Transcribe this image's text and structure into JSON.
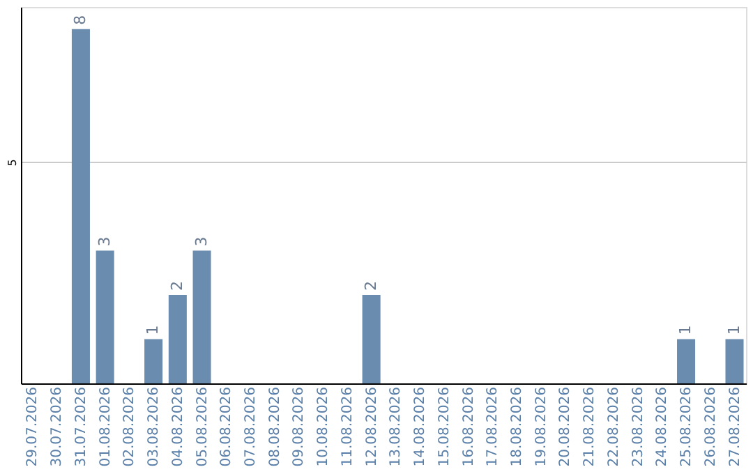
{
  "chart_data": {
    "type": "bar",
    "categories": [
      "29.07.2026",
      "30.07.2026",
      "31.07.2026",
      "01.08.2026",
      "02.08.2026",
      "03.08.2026",
      "04.08.2026",
      "05.08.2026",
      "06.08.2026",
      "07.08.2026",
      "08.08.2026",
      "09.08.2026",
      "10.08.2026",
      "11.08.2026",
      "12.08.2026",
      "13.08.2026",
      "14.08.2026",
      "15.08.2026",
      "16.08.2026",
      "17.08.2026",
      "18.08.2026",
      "19.08.2026",
      "20.08.2026",
      "21.08.2026",
      "22.08.2026",
      "23.08.2026",
      "24.08.2026",
      "25.08.2026",
      "26.08.2026",
      "27.08.2026"
    ],
    "values": [
      null,
      null,
      8,
      3,
      null,
      1,
      2,
      3,
      null,
      null,
      null,
      null,
      null,
      null,
      2,
      null,
      null,
      null,
      null,
      null,
      null,
      null,
      null,
      null,
      null,
      null,
      null,
      1,
      null,
      1
    ],
    "color": "#6a8caf",
    "ylim": [
      0,
      8.5
    ],
    "yticks": [
      5
    ],
    "grid": "y",
    "data_labels": true
  }
}
